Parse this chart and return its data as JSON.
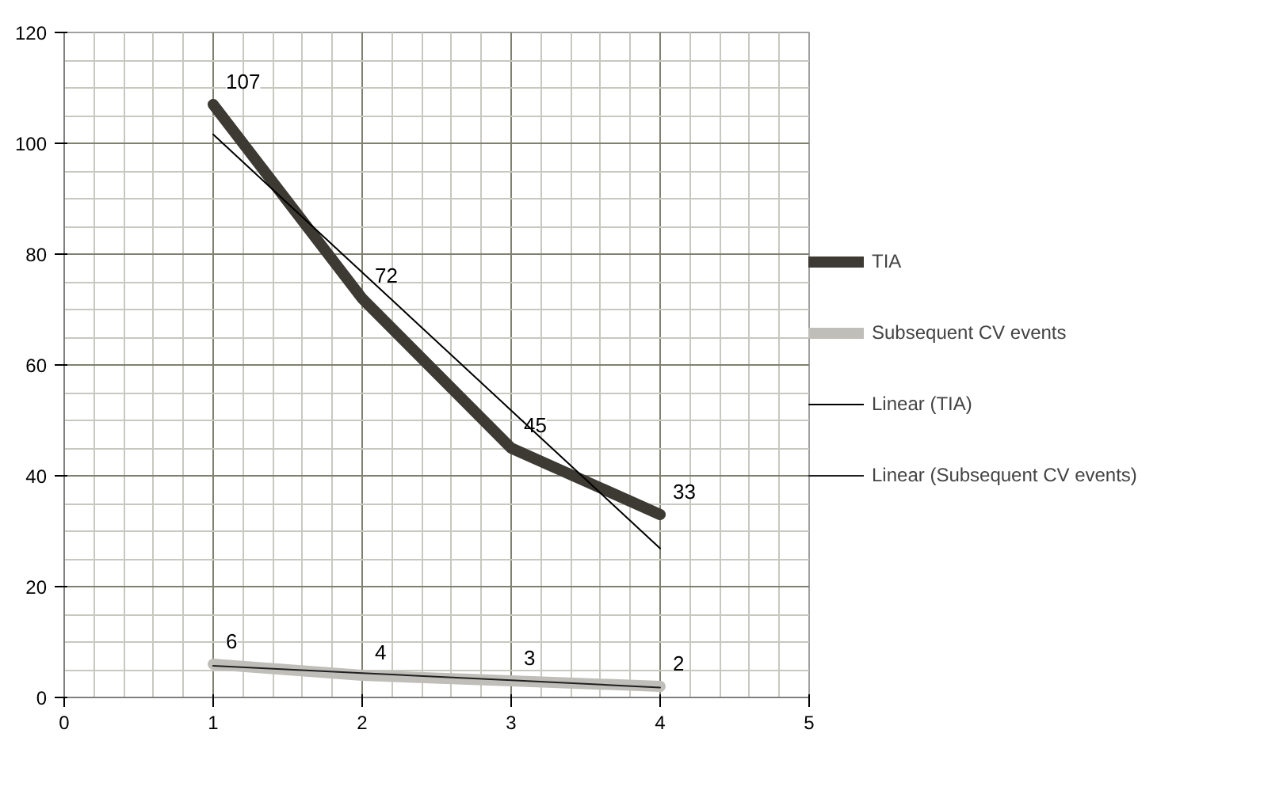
{
  "chart_data": {
    "type": "line",
    "x": [
      1,
      2,
      3,
      4
    ],
    "xlim": [
      0,
      5
    ],
    "xticks": [
      0,
      1,
      2,
      3,
      4,
      5
    ],
    "ylim": [
      0,
      120
    ],
    "yticks": [
      0,
      20,
      40,
      60,
      80,
      100,
      120
    ],
    "grid": true,
    "legend": "right",
    "marker": "none",
    "series": [
      {
        "name": "TIA",
        "color": "#3d3a33",
        "values": [
          107,
          72,
          45,
          33
        ],
        "value_labels": [
          "107",
          "72",
          "45",
          "33"
        ]
      },
      {
        "name": "Subsequent CV events",
        "color": "#c0beb8",
        "values": [
          6,
          4,
          3,
          2
        ],
        "value_labels": [
          "6",
          "4",
          "3",
          "2"
        ]
      },
      {
        "name": "Linear (TIA)",
        "color": "#000000",
        "values": [
          101.6,
          76.7,
          51.8,
          26.9
        ]
      },
      {
        "name": "Linear (Subsequent CV events)",
        "color": "#202020",
        "values": [
          5.7,
          4.4,
          3.1,
          1.8
        ]
      }
    ]
  }
}
